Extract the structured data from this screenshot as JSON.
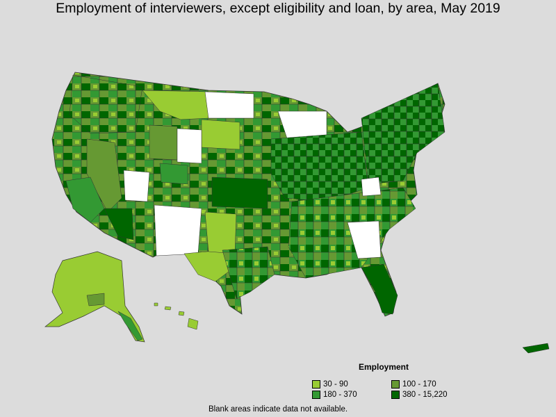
{
  "title": "Employment of interviewers, except eligibility and loan, by area, May 2019",
  "legend": {
    "title": "Employment",
    "items": [
      {
        "label": "30 - 90",
        "color": "#99cc33"
      },
      {
        "label": "100 - 170",
        "color": "#669933"
      },
      {
        "label": "180 - 370",
        "color": "#339933"
      },
      {
        "label": "380 - 15,220",
        "color": "#006600"
      }
    ]
  },
  "footnote": "Blank areas indicate data not available.",
  "colors": {
    "background": "#dcdcdc",
    "no_data": "#ffffff",
    "border": "#333333"
  }
}
